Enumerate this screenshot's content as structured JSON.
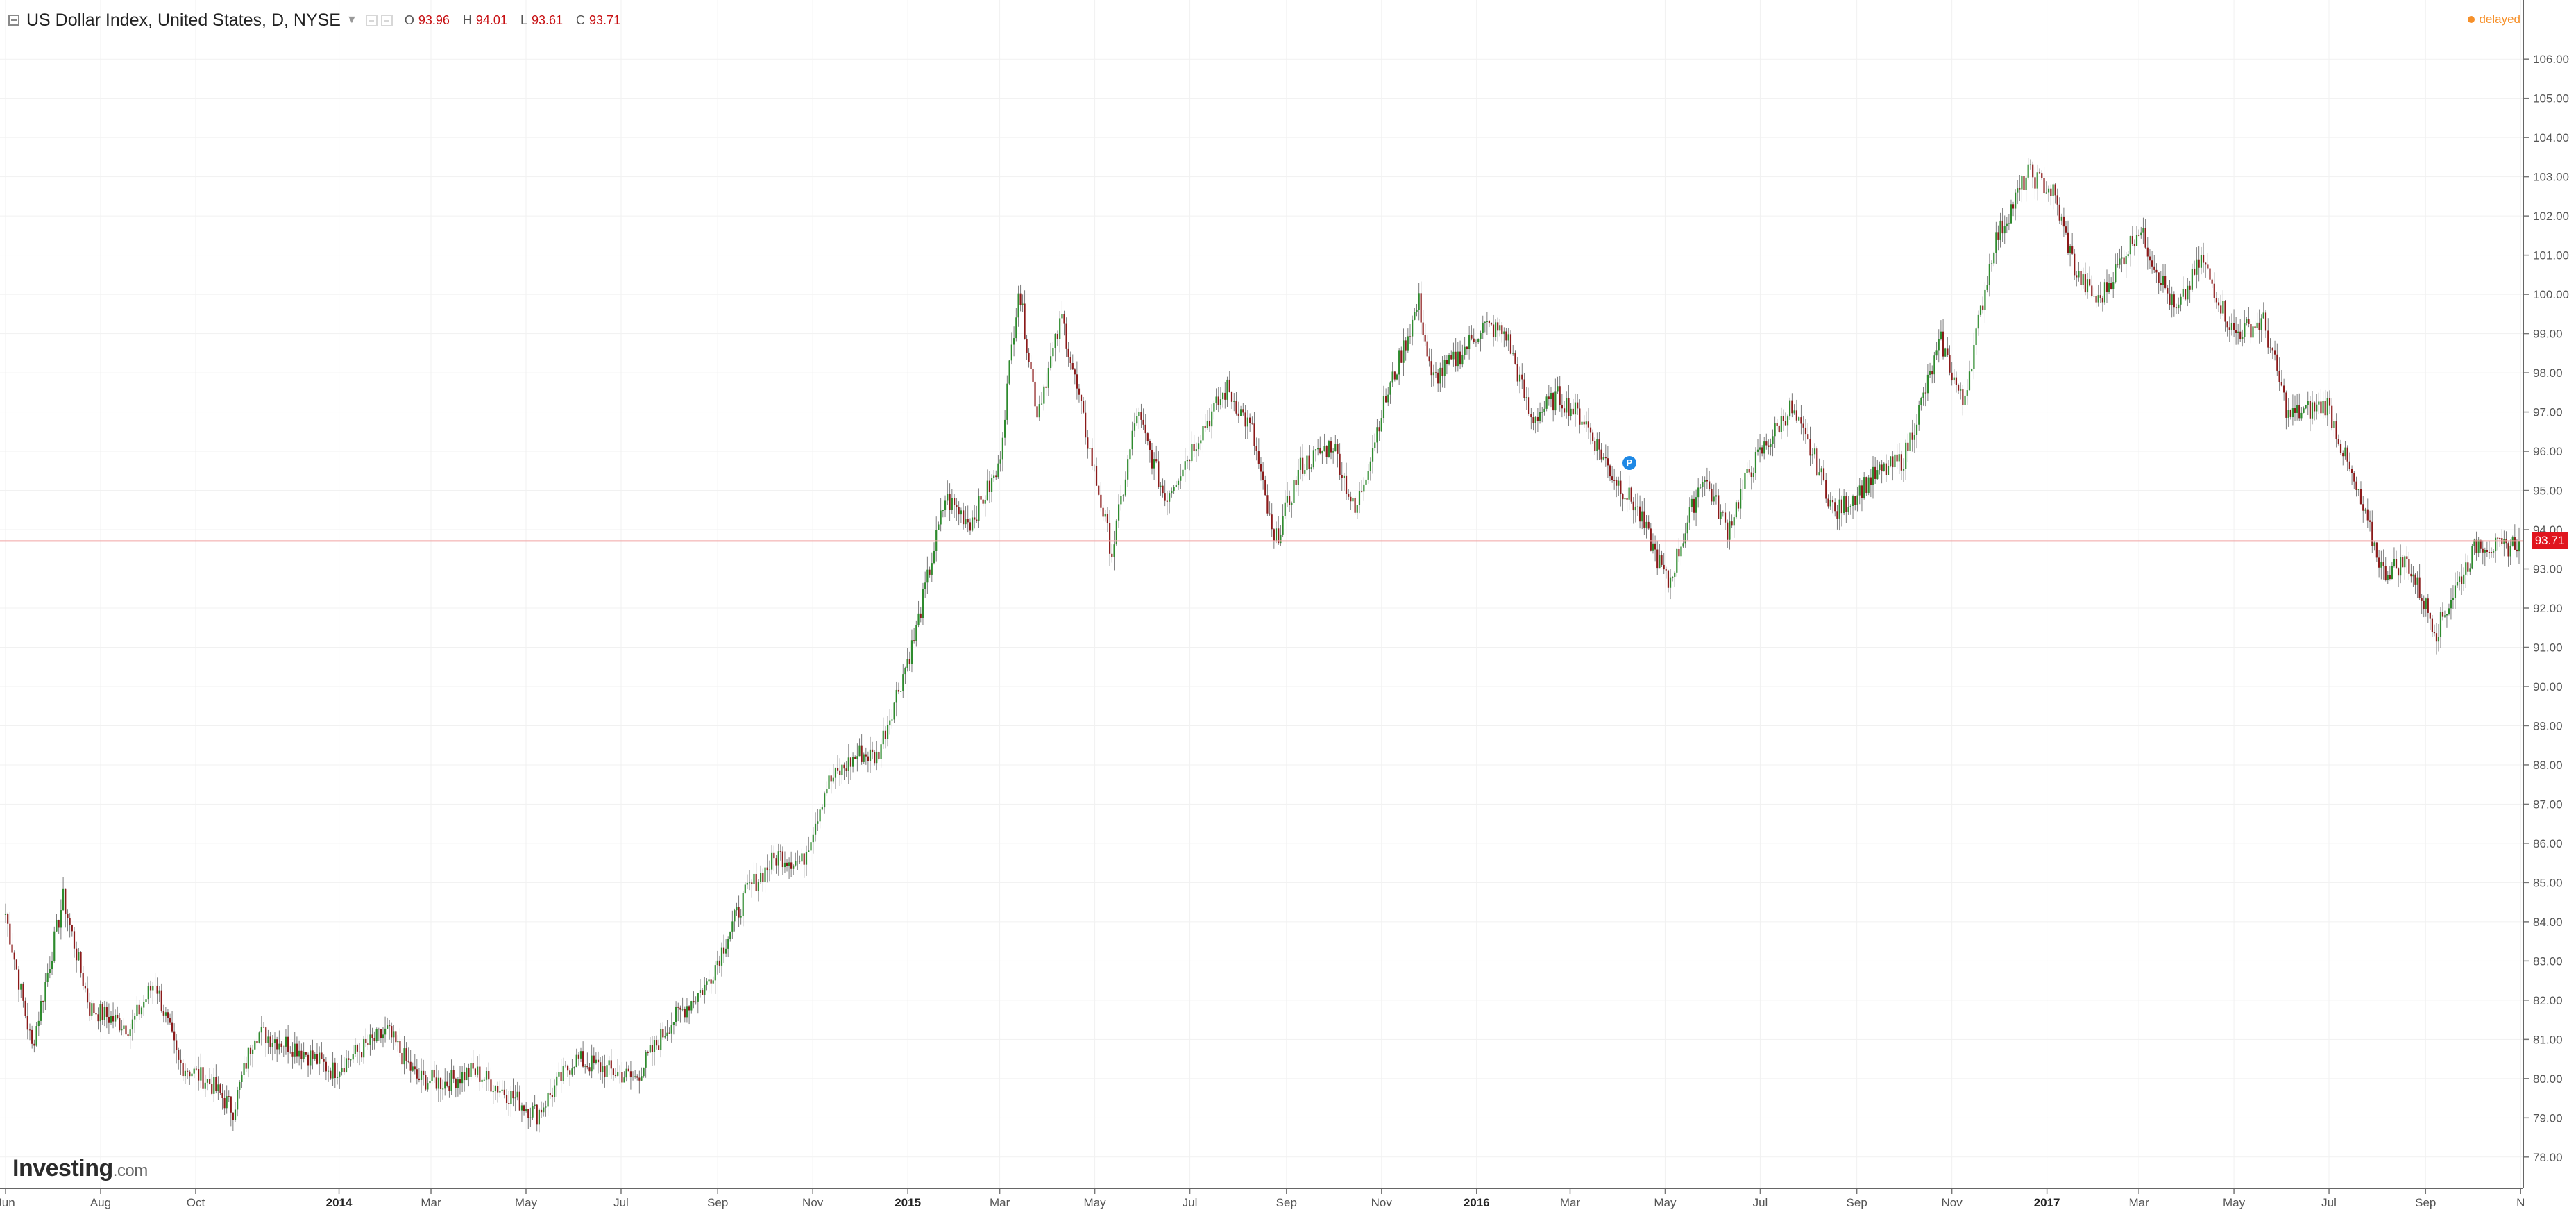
{
  "header": {
    "symbol_title": "US Dollar Index, United States, D, NYSE",
    "ohlc": [
      {
        "key": "O",
        "value": "93.96"
      },
      {
        "key": "H",
        "value": "94.01"
      },
      {
        "key": "L",
        "value": "93.61"
      },
      {
        "key": "C",
        "value": "93.71"
      }
    ],
    "delayed_label": "delayed"
  },
  "logo": {
    "brand": "Investing",
    "suffix": ".com"
  },
  "price_label": "93.71",
  "event_marker": "P",
  "colors": {
    "up": "#2e8b2e",
    "down": "#8b1a1a",
    "wick": "#7a7a7a",
    "last_price_line": "#f0a5a5",
    "price_tag": "#e0151e",
    "marker": "#1e88e5",
    "delayed": "#f6902a"
  },
  "chart_data": {
    "type": "candlestick",
    "series_name": "",
    "y_range": [
      77.2,
      106.8
    ],
    "y_ticks": [
      "78.00",
      "79.00",
      "80.00",
      "81.00",
      "82.00",
      "83.00",
      "84.00",
      "85.00",
      "86.00",
      "87.00",
      "88.00",
      "89.00",
      "90.00",
      "91.00",
      "92.00",
      "93.00",
      "94.00",
      "95.00",
      "96.00",
      "97.00",
      "98.00",
      "99.00",
      "100.00",
      "101.00",
      "102.00",
      "103.00",
      "104.00",
      "105.00",
      "106.00"
    ],
    "x_range": [
      "2013-06-01",
      "2017-10-31"
    ],
    "x_ticks": [
      {
        "date": "2013-06-01",
        "label": "Jun"
      },
      {
        "date": "2013-08-01",
        "label": "Aug"
      },
      {
        "date": "2013-10-01",
        "label": "Oct"
      },
      {
        "date": "2014-01-01",
        "label": "2014"
      },
      {
        "date": "2014-03-01",
        "label": "Mar"
      },
      {
        "date": "2014-05-01",
        "label": "May"
      },
      {
        "date": "2014-07-01",
        "label": "Jul"
      },
      {
        "date": "2014-09-01",
        "label": "Sep"
      },
      {
        "date": "2014-11-01",
        "label": "Nov"
      },
      {
        "date": "2015-01-01",
        "label": "2015"
      },
      {
        "date": "2015-03-01",
        "label": "Mar"
      },
      {
        "date": "2015-05-01",
        "label": "May"
      },
      {
        "date": "2015-07-01",
        "label": "Jul"
      },
      {
        "date": "2015-09-01",
        "label": "Sep"
      },
      {
        "date": "2015-11-01",
        "label": "Nov"
      },
      {
        "date": "2016-01-01",
        "label": "2016"
      },
      {
        "date": "2016-03-01",
        "label": "Mar"
      },
      {
        "date": "2016-05-01",
        "label": "May"
      },
      {
        "date": "2016-07-01",
        "label": "Jul"
      },
      {
        "date": "2016-09-01",
        "label": "Sep"
      },
      {
        "date": "2016-11-01",
        "label": "Nov"
      },
      {
        "date": "2017-01-01",
        "label": "2017"
      },
      {
        "date": "2017-03-01",
        "label": "Mar"
      },
      {
        "date": "2017-05-01",
        "label": "May"
      },
      {
        "date": "2017-07-01",
        "label": "Jul"
      },
      {
        "date": "2017-09-01",
        "label": "Sep"
      },
      {
        "date": "2017-11-01",
        "label": "N"
      }
    ],
    "last_close": 93.71,
    "marker_point": {
      "date": "2016-04-08",
      "value": 95.7
    },
    "close_path": [
      {
        "date": "2013-06-01",
        "close": 84.2
      },
      {
        "date": "2013-06-18",
        "close": 80.8
      },
      {
        "date": "2013-07-08",
        "close": 84.6
      },
      {
        "date": "2013-07-25",
        "close": 81.8
      },
      {
        "date": "2013-08-20",
        "close": 81.3
      },
      {
        "date": "2013-09-05",
        "close": 82.5
      },
      {
        "date": "2013-09-20",
        "close": 80.4
      },
      {
        "date": "2013-10-10",
        "close": 79.9
      },
      {
        "date": "2013-10-25",
        "close": 79.2
      },
      {
        "date": "2013-11-08",
        "close": 81.2
      },
      {
        "date": "2013-12-05",
        "close": 80.8
      },
      {
        "date": "2013-12-28",
        "close": 80.2
      },
      {
        "date": "2014-01-10",
        "close": 80.6
      },
      {
        "date": "2014-02-01",
        "close": 81.2
      },
      {
        "date": "2014-02-20",
        "close": 80.0
      },
      {
        "date": "2014-03-10",
        "close": 79.9
      },
      {
        "date": "2014-03-28",
        "close": 80.2
      },
      {
        "date": "2014-04-20",
        "close": 79.6
      },
      {
        "date": "2014-05-08",
        "close": 79.1
      },
      {
        "date": "2014-06-01",
        "close": 80.5
      },
      {
        "date": "2014-07-10",
        "close": 80.0
      },
      {
        "date": "2014-08-01",
        "close": 81.4
      },
      {
        "date": "2014-08-25",
        "close": 82.4
      },
      {
        "date": "2014-09-20",
        "close": 84.8
      },
      {
        "date": "2014-10-10",
        "close": 85.7
      },
      {
        "date": "2014-10-25",
        "close": 85.5
      },
      {
        "date": "2014-11-10",
        "close": 87.5
      },
      {
        "date": "2014-12-01",
        "close": 88.3
      },
      {
        "date": "2014-12-12",
        "close": 88.2
      },
      {
        "date": "2015-01-05",
        "close": 91.2
      },
      {
        "date": "2015-01-25",
        "close": 94.8
      },
      {
        "date": "2015-02-10",
        "close": 94.2
      },
      {
        "date": "2015-02-28",
        "close": 95.5
      },
      {
        "date": "2015-03-13",
        "close": 100.2
      },
      {
        "date": "2015-03-25",
        "close": 97.0
      },
      {
        "date": "2015-04-10",
        "close": 99.4
      },
      {
        "date": "2015-04-25",
        "close": 96.5
      },
      {
        "date": "2015-05-12",
        "close": 93.4
      },
      {
        "date": "2015-05-28",
        "close": 97.0
      },
      {
        "date": "2015-06-15",
        "close": 94.8
      },
      {
        "date": "2015-07-08",
        "close": 96.5
      },
      {
        "date": "2015-07-25",
        "close": 97.6
      },
      {
        "date": "2015-08-10",
        "close": 96.5
      },
      {
        "date": "2015-08-24",
        "close": 93.6
      },
      {
        "date": "2015-09-10",
        "close": 95.6
      },
      {
        "date": "2015-10-01",
        "close": 96.2
      },
      {
        "date": "2015-10-15",
        "close": 94.4
      },
      {
        "date": "2015-11-01",
        "close": 97.0
      },
      {
        "date": "2015-11-25",
        "close": 99.8
      },
      {
        "date": "2015-12-03",
        "close": 97.8
      },
      {
        "date": "2015-12-20",
        "close": 98.4
      },
      {
        "date": "2016-01-05",
        "close": 99.2
      },
      {
        "date": "2016-01-20",
        "close": 99.0
      },
      {
        "date": "2016-02-05",
        "close": 96.8
      },
      {
        "date": "2016-02-22",
        "close": 97.4
      },
      {
        "date": "2016-03-10",
        "close": 96.8
      },
      {
        "date": "2016-03-28",
        "close": 95.4
      },
      {
        "date": "2016-04-12",
        "close": 94.6
      },
      {
        "date": "2016-05-03",
        "close": 92.6
      },
      {
        "date": "2016-05-25",
        "close": 95.4
      },
      {
        "date": "2016-06-10",
        "close": 94.0
      },
      {
        "date": "2016-06-24",
        "close": 95.5
      },
      {
        "date": "2016-07-20",
        "close": 97.1
      },
      {
        "date": "2016-08-05",
        "close": 95.8
      },
      {
        "date": "2016-08-18",
        "close": 94.4
      },
      {
        "date": "2016-09-10",
        "close": 95.3
      },
      {
        "date": "2016-10-01",
        "close": 95.8
      },
      {
        "date": "2016-10-25",
        "close": 98.8
      },
      {
        "date": "2016-11-08",
        "close": 97.2
      },
      {
        "date": "2016-11-28",
        "close": 101.3
      },
      {
        "date": "2016-12-20",
        "close": 103.1
      },
      {
        "date": "2017-01-05",
        "close": 102.6
      },
      {
        "date": "2017-01-20",
        "close": 100.5
      },
      {
        "date": "2017-02-03",
        "close": 99.8
      },
      {
        "date": "2017-03-01",
        "close": 101.7
      },
      {
        "date": "2017-03-25",
        "close": 99.5
      },
      {
        "date": "2017-04-10",
        "close": 100.9
      },
      {
        "date": "2017-05-01",
        "close": 99.0
      },
      {
        "date": "2017-05-20",
        "close": 99.3
      },
      {
        "date": "2017-06-05",
        "close": 96.9
      },
      {
        "date": "2017-06-30",
        "close": 97.2
      },
      {
        "date": "2017-07-20",
        "close": 94.8
      },
      {
        "date": "2017-08-05",
        "close": 92.9
      },
      {
        "date": "2017-08-20",
        "close": 93.2
      },
      {
        "date": "2017-09-08",
        "close": 91.4
      },
      {
        "date": "2017-09-20",
        "close": 92.5
      },
      {
        "date": "2017-10-05",
        "close": 93.7
      },
      {
        "date": "2017-10-20",
        "close": 93.5
      },
      {
        "date": "2017-10-31",
        "close": 93.71
      }
    ]
  }
}
